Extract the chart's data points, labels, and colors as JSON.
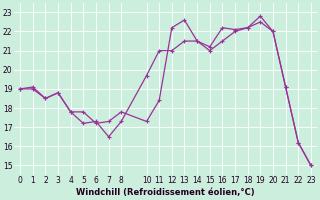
{
  "xlabel": "Windchill (Refroidissement éolien,°C)",
  "bg_color": "#cceedd",
  "line_color": "#993399",
  "grid_color": "#ffffff",
  "ylim": [
    14.5,
    23.5
  ],
  "xlim": [
    -0.5,
    23.5
  ],
  "yticks": [
    15,
    16,
    17,
    18,
    19,
    20,
    21,
    22,
    23
  ],
  "xticks": [
    0,
    1,
    2,
    3,
    4,
    5,
    6,
    7,
    8,
    10,
    11,
    12,
    13,
    14,
    15,
    16,
    17,
    18,
    19,
    20,
    21,
    22,
    23
  ],
  "series1_x": [
    0,
    1,
    2,
    3,
    4,
    5,
    6,
    7,
    8,
    10,
    11,
    12,
    13,
    14,
    15,
    16,
    17,
    18,
    19,
    20,
    21,
    22,
    23
  ],
  "series1_y": [
    19.0,
    19.1,
    18.5,
    18.8,
    17.8,
    17.8,
    17.2,
    17.3,
    17.8,
    17.3,
    18.4,
    22.2,
    22.6,
    21.5,
    21.2,
    22.2,
    22.1,
    22.2,
    22.8,
    22.0,
    19.1,
    16.2,
    15.0
  ],
  "series2_x": [
    0,
    1,
    2,
    3,
    4,
    5,
    6,
    7,
    8,
    10,
    11,
    12,
    13,
    14,
    15,
    16,
    17,
    18,
    19,
    20,
    21,
    22,
    23
  ],
  "series2_y": [
    19.0,
    19.0,
    18.5,
    18.8,
    17.8,
    17.2,
    17.3,
    16.5,
    17.3,
    19.7,
    21.0,
    21.0,
    21.5,
    21.5,
    21.0,
    21.5,
    22.0,
    22.2,
    22.5,
    22.0,
    19.1,
    16.2,
    15.0
  ],
  "marker_color": "#993399",
  "tick_fontsize": 5.5,
  "xlabel_fontsize": 6,
  "lw": 0.9
}
